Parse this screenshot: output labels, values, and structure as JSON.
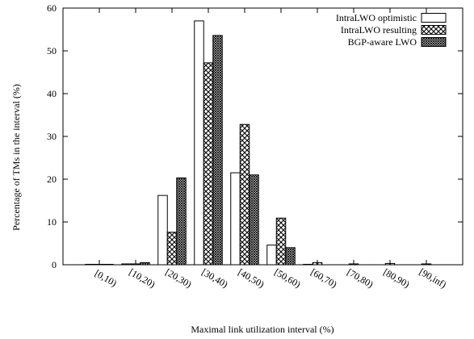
{
  "chart_data": {
    "type": "bar",
    "xlabel": "Maximal link utilization interval (%)",
    "ylabel": "Percentage of TMs in the interval (%)",
    "ylim": [
      0,
      60
    ],
    "yticks": [
      0,
      10,
      20,
      30,
      40,
      50,
      60
    ],
    "categories": [
      "[0,10)",
      "[10,20)",
      "[20,30)",
      "[30,40)",
      "[40,50)",
      "[50,60)",
      "[60,70)",
      "[70,80)",
      "[80,90)",
      "[90,inf)"
    ],
    "legend_position": "top-right",
    "grid": false,
    "series": [
      {
        "name": "IntraLWO optimistic",
        "pattern": "white",
        "values": [
          0.1,
          0.2,
          16.2,
          57.0,
          21.5,
          4.6,
          0.1,
          0,
          0,
          0
        ]
      },
      {
        "name": "IntraLWO resulting",
        "pattern": "crosshatch",
        "values": [
          0.1,
          0.2,
          7.6,
          47.2,
          32.8,
          10.9,
          0.5,
          0.2,
          0.3,
          0.2
        ]
      },
      {
        "name": "BGP-aware LWO",
        "pattern": "dense-crosshatch",
        "values": [
          0.1,
          0.5,
          20.3,
          53.6,
          21.0,
          4.0,
          0,
          0,
          0,
          0
        ]
      }
    ]
  }
}
